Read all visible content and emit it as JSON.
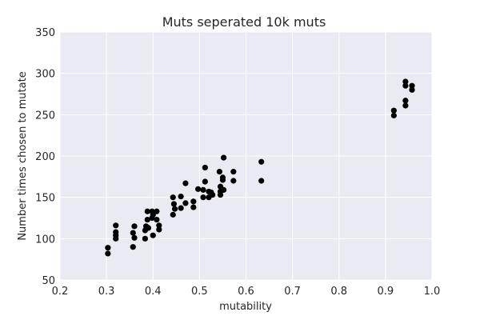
{
  "chart_data": {
    "type": "scatter",
    "title": "Muts seperated 10k muts",
    "xlabel": "mutability",
    "ylabel": "Number times chosen to mutate",
    "xlim": [
      0.2,
      1.0
    ],
    "ylim": [
      50,
      350
    ],
    "xticks": [
      "0.2",
      "0.3",
      "0.4",
      "0.5",
      "0.6",
      "0.7",
      "0.8",
      "0.9",
      "1.0"
    ],
    "yticks": [
      "50",
      "100",
      "150",
      "200",
      "250",
      "300",
      "350"
    ],
    "grid": true,
    "background_color": "#eaeaf2",
    "grid_color": "#ffffff",
    "marker_color": "#000000",
    "points": [
      [
        0.303,
        89
      ],
      [
        0.303,
        82
      ],
      [
        0.32,
        116
      ],
      [
        0.32,
        108
      ],
      [
        0.32,
        104
      ],
      [
        0.32,
        100
      ],
      [
        0.357,
        107
      ],
      [
        0.357,
        90
      ],
      [
        0.36,
        115
      ],
      [
        0.36,
        101
      ],
      [
        0.383,
        110
      ],
      [
        0.383,
        100
      ],
      [
        0.385,
        115
      ],
      [
        0.388,
        133
      ],
      [
        0.388,
        123
      ],
      [
        0.39,
        113
      ],
      [
        0.398,
        133
      ],
      [
        0.398,
        125
      ],
      [
        0.4,
        129
      ],
      [
        0.4,
        104
      ],
      [
        0.408,
        133
      ],
      [
        0.408,
        123
      ],
      [
        0.413,
        116
      ],
      [
        0.413,
        111
      ],
      [
        0.443,
        150
      ],
      [
        0.443,
        129
      ],
      [
        0.445,
        142
      ],
      [
        0.447,
        136
      ],
      [
        0.46,
        151
      ],
      [
        0.46,
        137
      ],
      [
        0.47,
        167
      ],
      [
        0.47,
        143
      ],
      [
        0.487,
        145
      ],
      [
        0.487,
        138
      ],
      [
        0.497,
        160
      ],
      [
        0.508,
        159
      ],
      [
        0.508,
        150
      ],
      [
        0.512,
        186
      ],
      [
        0.512,
        169
      ],
      [
        0.52,
        157
      ],
      [
        0.52,
        150
      ],
      [
        0.525,
        156
      ],
      [
        0.528,
        153
      ],
      [
        0.543,
        181
      ],
      [
        0.545,
        163
      ],
      [
        0.545,
        157
      ],
      [
        0.545,
        153
      ],
      [
        0.55,
        174
      ],
      [
        0.55,
        171
      ],
      [
        0.552,
        159
      ],
      [
        0.552,
        198
      ],
      [
        0.573,
        181
      ],
      [
        0.573,
        170
      ],
      [
        0.633,
        193
      ],
      [
        0.633,
        170
      ],
      [
        0.918,
        255
      ],
      [
        0.918,
        249
      ],
      [
        0.943,
        290
      ],
      [
        0.943,
        285
      ],
      [
        0.943,
        267
      ],
      [
        0.943,
        261
      ],
      [
        0.957,
        285
      ],
      [
        0.957,
        280
      ]
    ]
  }
}
